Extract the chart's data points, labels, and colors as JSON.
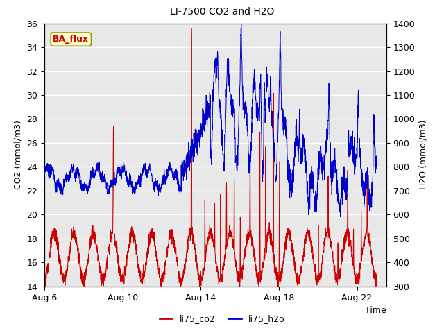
{
  "title": "LI-7500 CO2 and H2O",
  "xlabel": "Time",
  "ylabel_left": "CO2 (mmol/m3)",
  "ylabel_right": "H2O (mmol/m3)",
  "ylim_left": [
    14,
    36
  ],
  "ylim_right": [
    300,
    1400
  ],
  "co2_color": "#cc0000",
  "h2o_color": "#0000cc",
  "plot_bg": "#e8e8e8",
  "annotation_text": "BA_flux",
  "annotation_facecolor": "#ffffcc",
  "annotation_edgecolor": "#999900",
  "annotation_textcolor": "#cc0000",
  "legend_co2": "li75_co2",
  "legend_h2o": "li75_h2o",
  "xtick_labels": [
    "Aug 6",
    "Aug 10",
    "Aug 14",
    "Aug 18",
    "Aug 22"
  ],
  "xtick_days": [
    0,
    4,
    8,
    12,
    16
  ],
  "figsize": [
    6.4,
    4.8
  ],
  "dpi": 100
}
